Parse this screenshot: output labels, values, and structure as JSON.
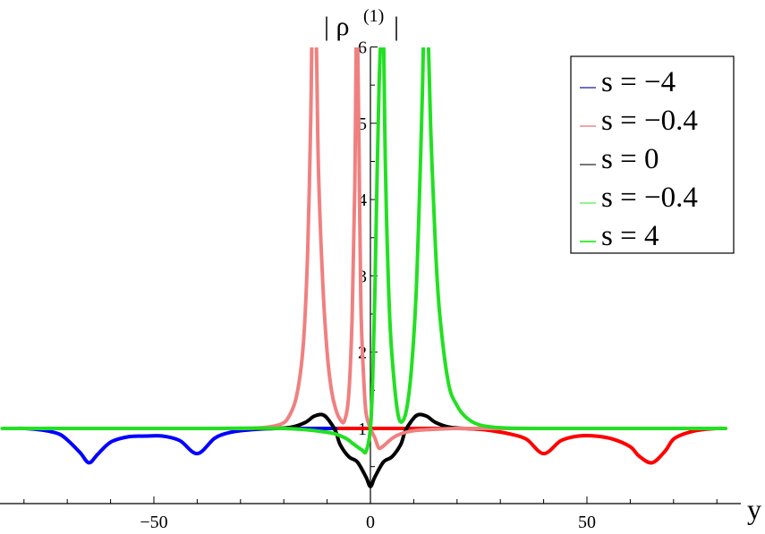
{
  "chart_data": {
    "type": "line",
    "title": "",
    "xlabel": "y",
    "ylabel": "| ρ",
    "ylabel_sup": "(1)",
    "ylabel_bar_right": "|",
    "xlim": [
      -85,
      82
    ],
    "ylim": [
      0.2,
      6
    ],
    "x_ticks": [
      {
        "value": -50,
        "label": "−50"
      },
      {
        "value": 0,
        "label": "0"
      },
      {
        "value": 50,
        "label": "50"
      }
    ],
    "y_ticks": [
      {
        "value": 1,
        "label": "1"
      },
      {
        "value": 2,
        "label": "2"
      },
      {
        "value": 3,
        "label": "3"
      },
      {
        "value": 4,
        "label": "4"
      },
      {
        "value": 5,
        "label": "5"
      },
      {
        "value": 6,
        "label": "6"
      }
    ],
    "legend": {
      "placement": "top-right",
      "entries": [
        {
          "label": "s = −4",
          "color": "#6e6ec8"
        },
        {
          "label": "s = −0.4",
          "color": "#f5a5a5"
        },
        {
          "label": "s = 0",
          "color": "#777777"
        },
        {
          "label": "s = −0.4",
          "color": "#8ef58e"
        },
        {
          "label": "s = 4",
          "color": "#3ef03e"
        }
      ]
    },
    "series": [
      {
        "color": "#ff0000",
        "x": [
          -82,
          0,
          20,
          25,
          28,
          32,
          36,
          40,
          44,
          48,
          52,
          56,
          60,
          62,
          65,
          68,
          70,
          73,
          76,
          80,
          82
        ],
        "y": [
          1,
          1,
          1,
          0.99,
          0.97,
          0.93,
          0.86,
          0.67,
          0.84,
          0.9,
          0.9,
          0.86,
          0.76,
          0.64,
          0.55,
          0.7,
          0.86,
          0.94,
          0.98,
          1,
          1
        ]
      },
      {
        "color": "#0000ff",
        "x": [
          -82,
          -80,
          -76,
          -72,
          -70,
          -67,
          -65,
          -63,
          -60,
          -56,
          -52,
          -48,
          -44,
          -40,
          -36,
          -33,
          -30,
          -26,
          -22,
          -12,
          -8
        ],
        "y": [
          1,
          1,
          0.98,
          0.93,
          0.85,
          0.68,
          0.55,
          0.66,
          0.82,
          0.89,
          0.9,
          0.9,
          0.84,
          0.67,
          0.87,
          0.94,
          0.97,
          0.99,
          1,
          1,
          1
        ]
      },
      {
        "color": "#000000",
        "x": [
          -30,
          -22,
          -18,
          -15,
          -13,
          -11,
          -9.5,
          -8,
          -7,
          -5,
          -3,
          -1,
          0,
          1,
          3,
          5,
          7,
          8,
          9.5,
          11,
          13,
          15,
          18,
          22,
          30
        ],
        "y": [
          1,
          1,
          1.02,
          1.08,
          1.16,
          1.18,
          1.1,
          0.96,
          0.79,
          0.63,
          0.56,
          0.36,
          0.24,
          0.36,
          0.56,
          0.63,
          0.79,
          0.96,
          1.1,
          1.18,
          1.16,
          1.08,
          1.02,
          1,
          1
        ]
      },
      {
        "color": "#f08080",
        "x": [
          -40,
          -30,
          -25,
          -21,
          -19,
          -17,
          -15.5,
          -14.5,
          -13.8,
          -13.4,
          -12.6,
          -12,
          -11,
          -10,
          -9,
          -8,
          -7,
          -6,
          -5,
          -4.2,
          -3.6,
          -3.25,
          -3,
          -2.6,
          -2.2,
          -1.5,
          -1,
          0,
          1,
          1.5,
          2,
          3,
          5,
          7,
          10,
          15,
          20,
          25,
          30,
          40
        ],
        "y": [
          1,
          1,
          1.01,
          1.05,
          1.14,
          1.44,
          2.1,
          3.3,
          5.0,
          6.3,
          6.3,
          4.4,
          2.9,
          2.0,
          1.5,
          1.25,
          1.12,
          1.1,
          1.45,
          2.5,
          4.2,
          6.3,
          6.3,
          4.5,
          2.6,
          1.6,
          1.2,
          1,
          0.88,
          0.8,
          0.74,
          0.77,
          0.87,
          0.93,
          0.97,
          0.99,
          1,
          1,
          1,
          1
        ]
      },
      {
        "color": "#22e022",
        "x": [
          -85,
          -40,
          -20,
          -10,
          -6,
          -4,
          -2,
          -1,
          0,
          0.5,
          1,
          1.5,
          2,
          2.6,
          3.0,
          3.3,
          3.7,
          4.5,
          5.5,
          6.5,
          7.5,
          8.5,
          9.5,
          10.5,
          11.3,
          12.0,
          12.4,
          13.2,
          14,
          15,
          16,
          18,
          20,
          22,
          25,
          30,
          40,
          82
        ],
        "y": [
          1,
          1,
          1,
          0.95,
          0.88,
          0.8,
          0.72,
          0.7,
          1.0,
          1.6,
          2.7,
          4.2,
          5.5,
          6.3,
          6.3,
          5.0,
          3.8,
          2.4,
          1.6,
          1.15,
          1.1,
          1.3,
          1.8,
          2.7,
          4.0,
          5.4,
          6.3,
          6.3,
          4.8,
          3.4,
          2.5,
          1.6,
          1.3,
          1.15,
          1.05,
          1.01,
          1,
          1
        ]
      }
    ]
  }
}
